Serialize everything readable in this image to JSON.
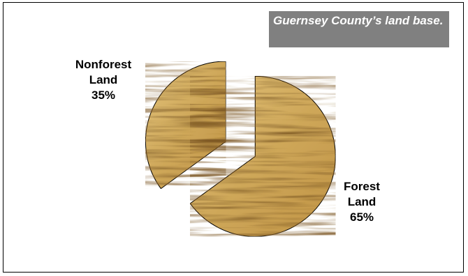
{
  "caption": "Guernsey County’s land base.",
  "colors": {
    "wood_base": "#cda75a",
    "wood_light": "#e6c983",
    "wood_dark": "#8a6224",
    "caption_bg": "#808080"
  },
  "chart_data": {
    "type": "pie",
    "title": "",
    "slices": [
      {
        "label": "Nonforest Land",
        "label_lines": [
          "Nonforest",
          "Land",
          "35%"
        ],
        "value": 35,
        "percent": "35%"
      },
      {
        "label": "Forest Land",
        "label_lines": [
          "Forest",
          "Land",
          "65%"
        ],
        "value": 65,
        "percent": "65%"
      }
    ],
    "legend": "none"
  }
}
